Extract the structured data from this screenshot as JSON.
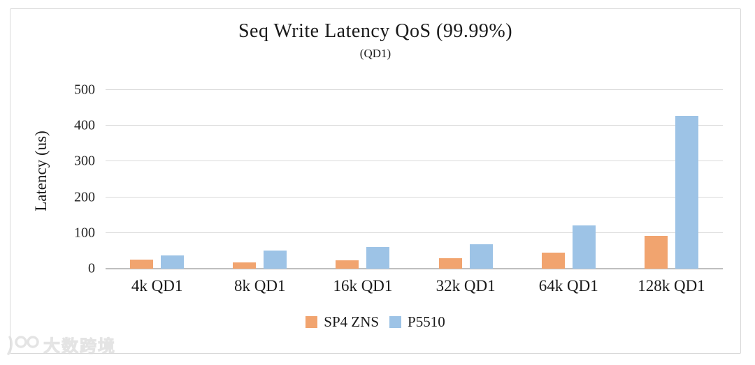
{
  "chart_data": {
    "type": "bar",
    "title": "Seq Write Latency QoS (99.99%)",
    "subtitle": "(QD1)",
    "ylabel": "Latency  (us)",
    "xlabel": "",
    "categories": [
      "4k QD1",
      "8k QD1",
      "16k QD1",
      "32k QD1",
      "64k QD1",
      "128k QD1"
    ],
    "series": [
      {
        "name": "SP4 ZNS",
        "color": "#F1A46F",
        "values": [
          25,
          18,
          24,
          29,
          45,
          92
        ]
      },
      {
        "name": "P5510",
        "color": "#9DC3E6",
        "values": [
          38,
          50,
          60,
          68,
          122,
          428
        ]
      }
    ],
    "ylim": [
      0,
      500
    ],
    "yticks": [
      0,
      100,
      200,
      300,
      400,
      500
    ],
    "grid": true,
    "legend_position": "bottom",
    "colors": {
      "gridline": "#d9d9d9",
      "axis": "#bfbfbf",
      "border": "#d9d9d9"
    }
  },
  "watermark": {
    "logo": "100-logo",
    "text": "大数跨境"
  }
}
